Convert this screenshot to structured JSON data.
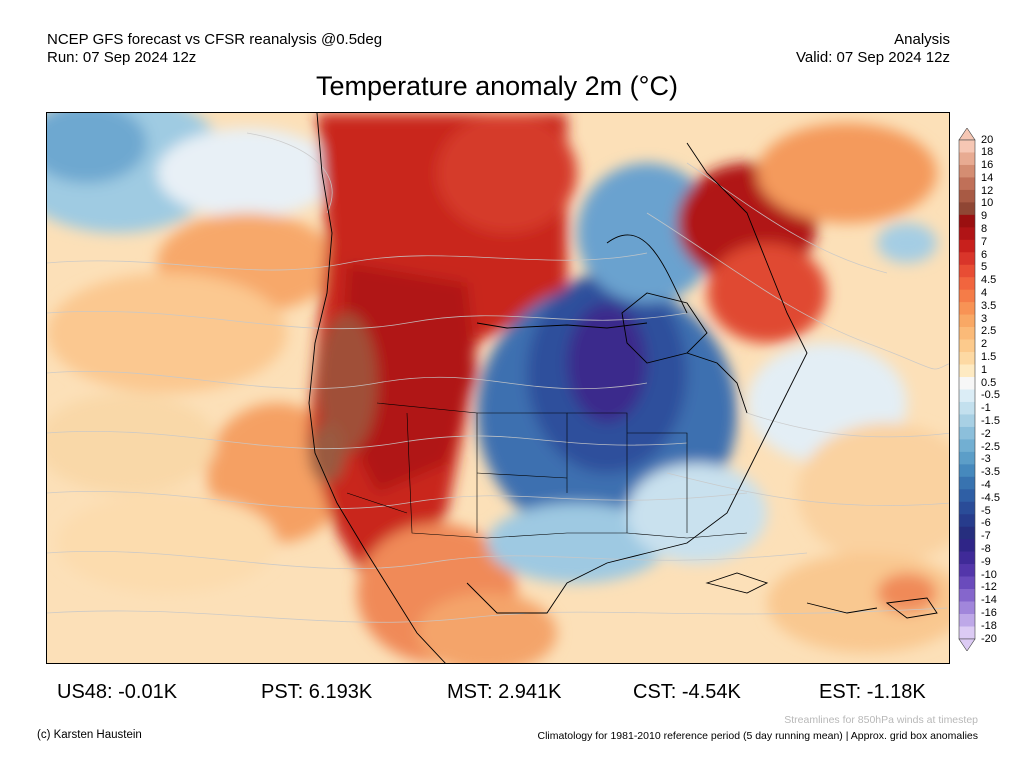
{
  "header": {
    "line1_left": "NCEP GFS forecast vs CFSR reanalysis @0.5deg",
    "line2_left": "Run: 07 Sep 2024 12z",
    "line1_right": "Analysis",
    "line2_right": "Valid: 07 Sep 2024 12z"
  },
  "title": "Temperature anomaly 2m (°C)",
  "colorbar": {
    "labels": [
      "20",
      "18",
      "16",
      "14",
      "12",
      "10",
      "9",
      "8",
      "7",
      "6",
      "5",
      "4.5",
      "4",
      "3.5",
      "3",
      "2.5",
      "2",
      "1.5",
      "1",
      "0.5",
      "-0.5",
      "-1",
      "-1.5",
      "-2",
      "-2.5",
      "-3",
      "-3.5",
      "-4",
      "-4.5",
      "-5",
      "-6",
      "-7",
      "-8",
      "-9",
      "-10",
      "-12",
      "-14",
      "-16",
      "-18",
      "-20"
    ],
    "colors": [
      "#f6c7b4",
      "#e8ab92",
      "#d48d72",
      "#c07058",
      "#a85a44",
      "#8f4634",
      "#9a0f10",
      "#b01416",
      "#c8201c",
      "#d9352a",
      "#e84d34",
      "#f1653e",
      "#f57c48",
      "#f89355",
      "#f9a865",
      "#fbba78",
      "#fcca8c",
      "#fdd9a3",
      "#feeac2",
      "#f7f7f7",
      "#dbedf6",
      "#c3e0ee",
      "#a8d0e4",
      "#8cbfdb",
      "#72afd2",
      "#5c9ec8",
      "#4689bd",
      "#3873b0",
      "#2f5fa5",
      "#2a4c98",
      "#273c8c",
      "#262e7e",
      "#2f2587",
      "#3f2a98",
      "#5336aa",
      "#6a4bbc",
      "#8566cc",
      "#a186db",
      "#bea8e8",
      "#dccbf4"
    ]
  },
  "stats": {
    "us48": "US48: -0.01K",
    "pst": "PST: 6.193K",
    "mst": "MST: 2.941K",
    "cst": "CST: -4.54K",
    "est": "EST: -1.18K"
  },
  "footer": {
    "credit": "(c) Karsten Haustein",
    "streamlines": "Streamlines for 850hPa winds at timestep",
    "climatology": "Climatology for 1981-2010 reference period (5 day running mean) | Approx. grid box anomalies"
  }
}
